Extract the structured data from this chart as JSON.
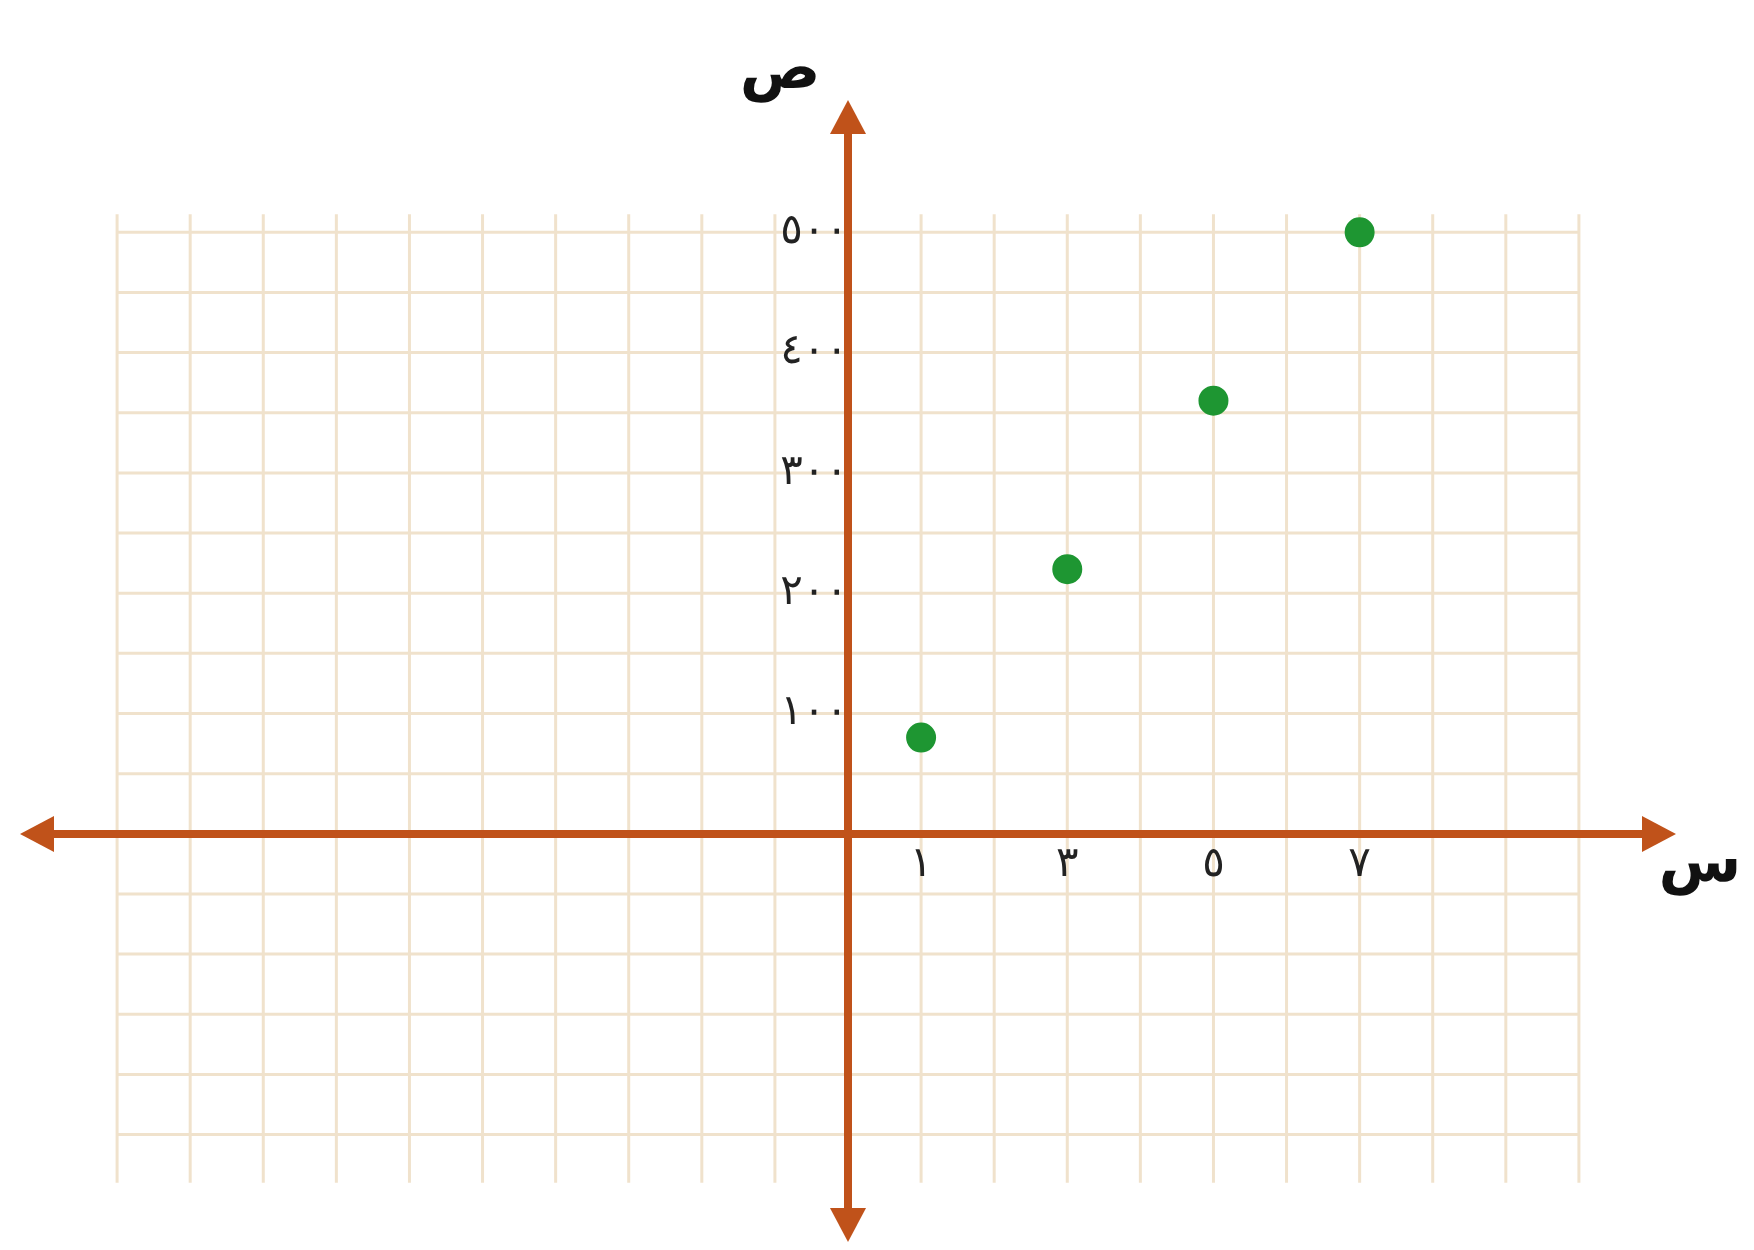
{
  "chart_data": {
    "type": "scatter",
    "xlabel": "س",
    "ylabel": "ص",
    "x": [
      1,
      3,
      5,
      7
    ],
    "series": [
      {
        "color": "#1e9632",
        "values": [
          80,
          220,
          360,
          500
        ]
      }
    ],
    "xlim": [
      -11,
      11
    ],
    "ylim": [
      -320,
      590
    ],
    "xticks": [
      {
        "value": 1,
        "label": "١"
      },
      {
        "value": 3,
        "label": "٣"
      },
      {
        "value": 5,
        "label": "٥"
      },
      {
        "value": 7,
        "label": "٧"
      }
    ],
    "yticks": [
      {
        "value": 100,
        "label": "١٠٠"
      },
      {
        "value": 200,
        "label": "٢٠٠"
      },
      {
        "value": 300,
        "label": "٣٠٠"
      },
      {
        "value": 400,
        "label": "٤٠٠"
      },
      {
        "value": 500,
        "label": "٥٠٠"
      }
    ],
    "grid": true,
    "legend": false,
    "marker": "circle"
  }
}
